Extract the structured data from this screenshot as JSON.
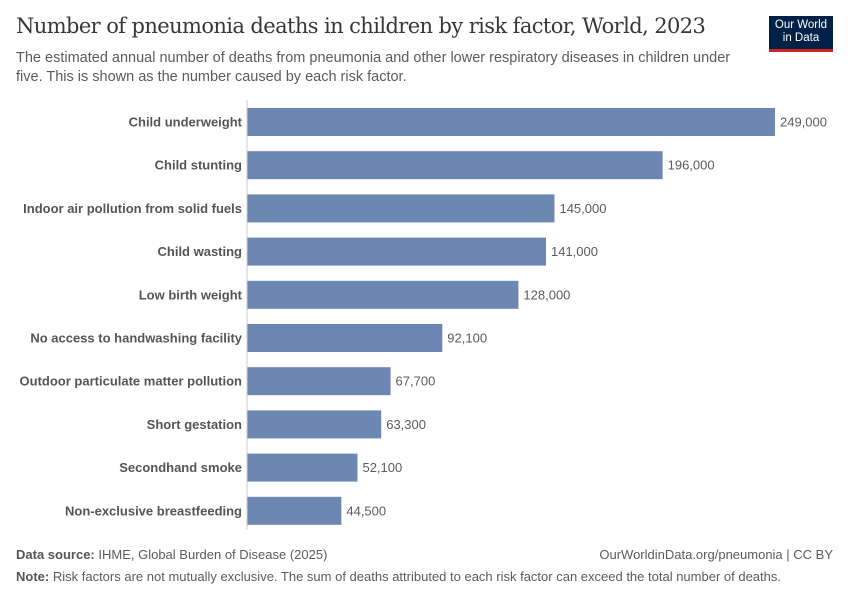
{
  "header": {
    "title": "Number of pneumonia deaths in children by risk factor, World, 2023",
    "subtitle": "The estimated annual number of deaths from pneumonia and other lower respiratory diseases in children under five. This is shown as the number caused by each risk factor.",
    "logo": "Our World in Data"
  },
  "footer": {
    "source_label": "Data source:",
    "source": "IHME, Global Burden of Disease (2025)",
    "url": "OurWorldinData.org/pneumonia | CC BY",
    "note_label": "Note:",
    "note": "Risk factors are not mutually exclusive. The sum of deaths attributed to each risk factor can exceed the total number of deaths."
  },
  "colors": {
    "bar": "#6d87b3",
    "logo_bg": "#002147",
    "logo_accent": "#ce261e"
  },
  "chart_data": {
    "type": "bar",
    "orientation": "horizontal",
    "title": "Number of pneumonia deaths in children by risk factor, World, 2023",
    "categories": [
      "Child underweight",
      "Child stunting",
      "Indoor air pollution from solid fuels",
      "Child wasting",
      "Low birth weight",
      "No access to handwashing facility",
      "Outdoor particulate matter pollution",
      "Short gestation",
      "Secondhand smoke",
      "Non-exclusive breastfeeding"
    ],
    "values": [
      249000,
      196000,
      145000,
      141000,
      128000,
      92100,
      67700,
      63300,
      52100,
      44500
    ],
    "value_labels": [
      "249,000",
      "196,000",
      "145,000",
      "141,000",
      "128,000",
      "92,100",
      "67,700",
      "63,300",
      "52,100",
      "44,500"
    ],
    "xlim": [
      0,
      249000
    ],
    "grid": false
  }
}
